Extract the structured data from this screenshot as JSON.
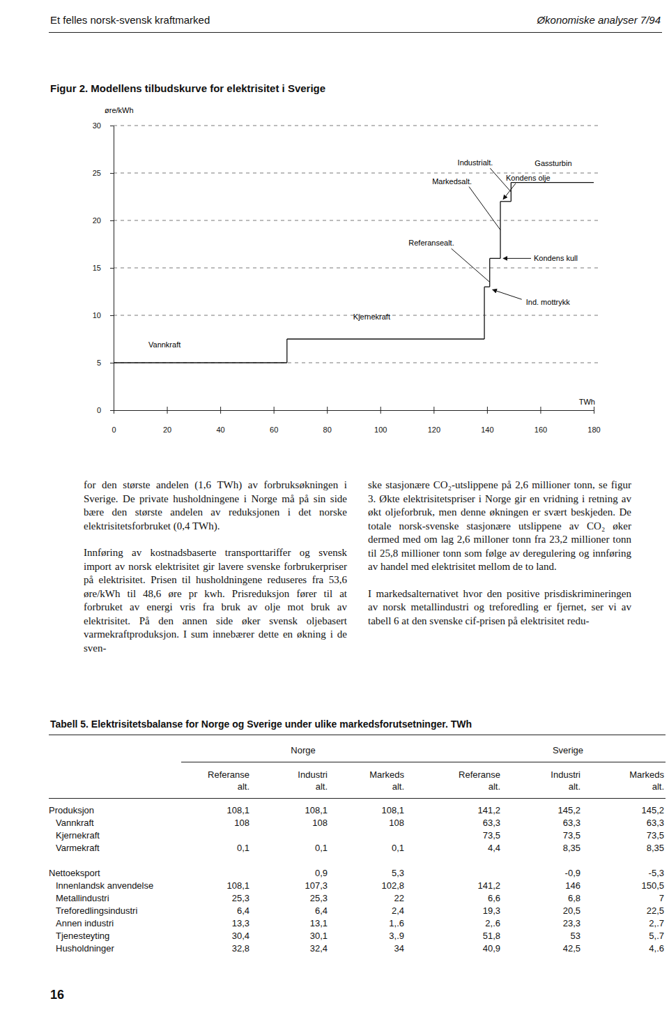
{
  "header": {
    "left": "Et felles norsk-svensk kraftmarked",
    "right": "Økonomiske analyser 7/94"
  },
  "chart_data": {
    "type": "step",
    "title": "Figur 2. Modellens tilbudskurve for elektrisitet i Sverige",
    "y_label": "øre/kWh",
    "x_label": "TWh",
    "xlim": [
      0,
      180
    ],
    "xticks": [
      0,
      20,
      40,
      60,
      80,
      100,
      120,
      140,
      160,
      180
    ],
    "ylim": [
      0,
      30
    ],
    "yticks": [
      0,
      5,
      10,
      15,
      20,
      25,
      30
    ],
    "grid": true,
    "segments": [
      {
        "name": "Vannkraft",
        "x0": 0,
        "x1": 65,
        "value": 5
      },
      {
        "name": "Kjernekraft",
        "x0": 65,
        "x1": 139,
        "value": 7.5
      },
      {
        "name": "Ind. mottrykk",
        "x0": 139,
        "x1": 141,
        "value": 13
      },
      {
        "name": "Kondens kull",
        "x0": 141,
        "x1": 145,
        "value": 16
      },
      {
        "name": "Kondens olje",
        "x0": 145,
        "x1": 149,
        "value": 22
      },
      {
        "name": "Gassturbin",
        "x0": 149,
        "x1": 180,
        "value": 24
      }
    ],
    "annotations": [
      {
        "text": "Referansealt.",
        "x": 141,
        "y": 13.5
      },
      {
        "text": "Markedsalt.",
        "x": 145,
        "y": 19
      },
      {
        "text": "Industrialt.",
        "x": 149,
        "y": 23
      }
    ]
  },
  "text": {
    "left": [
      "for den største andelen (1,6 TWh) av forbruksøkningen i Sverige. De private husholdningene i Norge må på sin side bære den største andelen av reduksjonen i det norske elektrisitetsforbruket (0,4 TWh).",
      "Innføring av kostnadsbaserte transporttariffer og svensk import av norsk elektrisitet gir lavere svenske forbrukerpriser på elektrisitet. Prisen til husholdningene reduseres fra 53,6 øre/kWh til 48,6 øre pr kwh. Prisreduksjon fører til at forbruket av energi vris fra bruk av olje mot bruk av elektrisitet. På den annen side øker svensk oljebasert varmekraftproduksjon. I sum innebærer dette en økning i de sven-"
    ],
    "right": [
      "ske stasjonære CO₂-utslippene på 2,6 millioner tonn, se figur 3. Økte elektrisitetspriser i Norge gir en vridning i retning av økt oljeforbruk, men denne økningen er svært beskjeden. De totale norsk-svenske stasjonære utslippene av CO₂ øker dermed med om lag 2,6 milloner tonn fra 23,2 millioner tonn til 25,8 millioner tonn som følge av deregulering og innføring av handel med elektrisitet mellom de to land.",
      "I markedsalternativet hvor den positive prisdiskrimineringen av norsk metallindustri og treforedling er fjernet, ser vi av tabell 6 at den svenske cif-prisen på elektrisitet redu-"
    ]
  },
  "table": {
    "title": "Tabell 5. Elektrisitetsbalanse for Norge og Sverige under ulike markedsforutsetninger. TWh",
    "groups": [
      "Norge",
      "Sverige"
    ],
    "columns": [
      {
        "top": "Referanse",
        "bottom": "alt."
      },
      {
        "top": "Industri",
        "bottom": "alt."
      },
      {
        "top": "Markeds",
        "bottom": "alt."
      },
      {
        "top": "Referanse",
        "bottom": "alt."
      },
      {
        "top": "Industri",
        "bottom": "alt."
      },
      {
        "top": "Markeds",
        "bottom": "alt."
      }
    ],
    "sections": [
      {
        "rows": [
          {
            "label": "Produksjon",
            "cells": [
              "108,1",
              "108,1",
              "108,1",
              "141,2",
              "145,2",
              "145,2"
            ]
          },
          {
            "label": "Vannkraft",
            "cells": [
              "108",
              "108",
              "108",
              "63,3",
              "63,3",
              "63,3"
            ]
          },
          {
            "label": "Kjernekraft",
            "cells": [
              null,
              null,
              null,
              "73,5",
              "73,5",
              "73,5"
            ]
          },
          {
            "label": "Varmekraft",
            "cells": [
              "0,1",
              "0,1",
              "0,1",
              "4,4",
              "8,35",
              "8,35"
            ]
          }
        ]
      },
      {
        "rows": [
          {
            "label": "Nettoeksport",
            "cells": [
              null,
              "0,9",
              "5,3",
              null,
              "-0,9",
              "-5,3"
            ]
          },
          {
            "label": "Innenlandsk anvendelse",
            "cells": [
              "108,1",
              "107,3",
              "102,8",
              "141,2",
              "146",
              "150,5"
            ]
          },
          {
            "label": "Metallindustri",
            "cells": [
              "25,3",
              "25,3",
              "22",
              "6,6",
              "6,8",
              "7"
            ]
          },
          {
            "label": "Treforedlingsindustri",
            "cells": [
              "6,4",
              "6,4",
              "2,4",
              "19,3",
              "20,5",
              "22,5"
            ]
          },
          {
            "label": "Annen industri",
            "cells": [
              "13,3",
              "13,1",
              "1,.6",
              "2,.6",
              "23,3",
              "2,.7"
            ]
          },
          {
            "label": "Tjenesteyting",
            "cells": [
              "30,4",
              "30,1",
              "3,.9",
              "51,8",
              "53",
              "5,.7"
            ]
          },
          {
            "label": "Husholdninger",
            "cells": [
              "32,8",
              "32,4",
              "34",
              "40,9",
              "42,5",
              "4,.6"
            ]
          }
        ]
      }
    ]
  },
  "page_number": "16"
}
